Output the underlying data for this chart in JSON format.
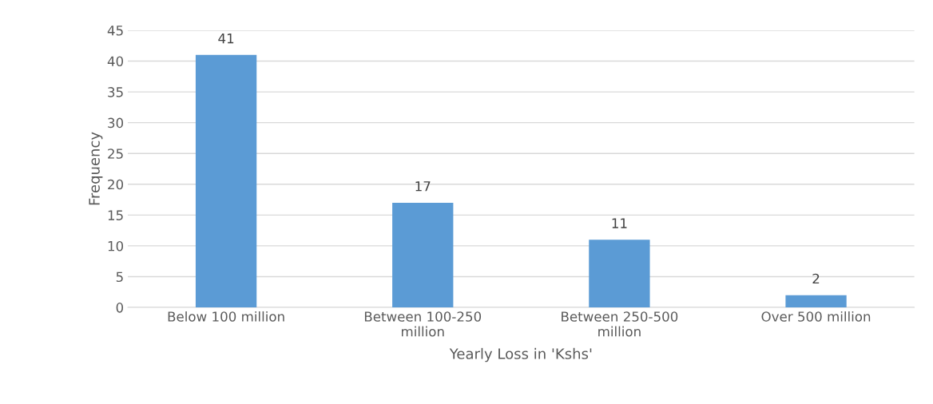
{
  "chart_data": {
    "type": "bar",
    "categories": [
      "Below 100 million",
      "Between 100-250\nmillion",
      "Between 250-500\nmillion",
      "Over 500 million"
    ],
    "values": [
      41,
      17,
      11,
      2
    ],
    "color": "#5b9bd5",
    "xlabel": "Yearly Loss in 'Kshs'",
    "ylabel": "Frequency",
    "ylim": [
      0,
      45
    ],
    "yticks": [
      0,
      5,
      10,
      15,
      20,
      25,
      30,
      35,
      40,
      45
    ],
    "grid": "y",
    "data_labels": true
  }
}
